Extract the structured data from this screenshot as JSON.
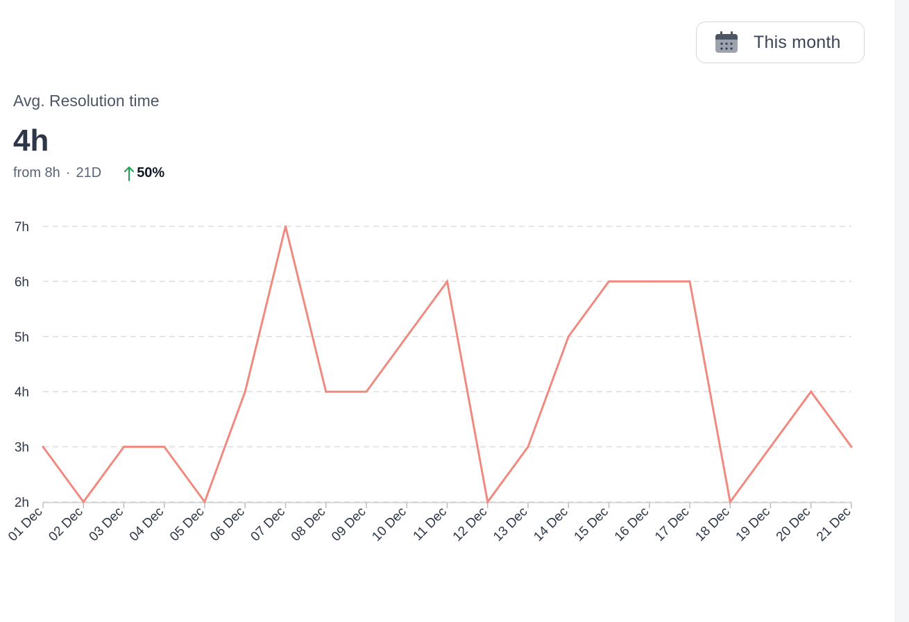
{
  "filter": {
    "label": "This month",
    "icon": "calendar-icon"
  },
  "metric": {
    "title": "Avg. Resolution time",
    "value": "4h",
    "from": "from 8h",
    "separator": "·",
    "period": "21D",
    "change": "50%",
    "change_icon": "arrow-up-icon",
    "change_color": "#16a34a"
  },
  "colors": {
    "line": "#f08a80",
    "grid": "#dddddd",
    "text": "#2d3748"
  },
  "chart_data": {
    "type": "line",
    "title": "",
    "xlabel": "",
    "ylabel": "",
    "categories": [
      "01 Dec",
      "02 Dec",
      "03 Dec",
      "04 Dec",
      "05 Dec",
      "06 Dec",
      "07 Dec",
      "08 Dec",
      "09 Dec",
      "10 Dec",
      "11 Dec",
      "12 Dec",
      "13 Dec",
      "14 Dec",
      "15 Dec",
      "16 Dec",
      "17 Dec",
      "18 Dec",
      "19 Dec",
      "20 Dec",
      "21 Dec"
    ],
    "values": [
      3,
      2,
      3,
      3,
      2,
      4,
      7,
      4,
      4,
      5,
      6,
      2,
      3,
      5,
      6,
      6,
      6,
      2,
      3,
      4,
      3
    ],
    "yticks": [
      2,
      3,
      4,
      5,
      6,
      7
    ],
    "ytick_labels": [
      "2h",
      "3h",
      "4h",
      "5h",
      "6h",
      "7h"
    ],
    "ylim": [
      2,
      7
    ],
    "grid": "horizontal-dashed",
    "legend": "none"
  }
}
